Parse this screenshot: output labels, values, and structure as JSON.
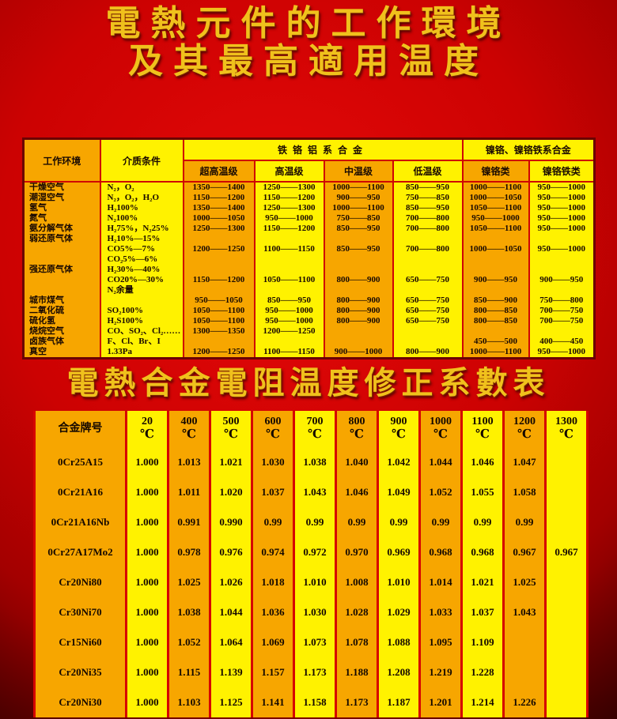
{
  "titles": {
    "line1": "電熱元件的工作環境",
    "line2": "及其最高適用温度",
    "coef_title": "電熱合金電阻温度修正系數表"
  },
  "colors": {
    "background_red": "#cc0202",
    "cell_orange": "#f7a600",
    "cell_yellow": "#fff200",
    "grid_red": "#d60202",
    "title_gold": "#f0c11c",
    "text_black": "#1a0a02"
  },
  "env_table": {
    "col_env": "工作环境",
    "col_medium": "介质条件",
    "group1": "铁铬铝系合金",
    "group2": "镍铬、镍铬铁系合金",
    "sub_headers": [
      "超高温级",
      "高温级",
      "中温级",
      "低温级",
      "镍铬类",
      "镍铬铁类"
    ],
    "lines": [
      [
        "干燥空气",
        "N₂，O₂",
        "1350——1400",
        "1250——1300",
        "1000——1100",
        "850——950",
        "1000——1100",
        "950——1000"
      ],
      [
        "潮湿空气",
        "N₂，O₂，H₂O",
        "1150——1200",
        "1150——1200",
        "900——950",
        "750——850",
        "1000——1050",
        "950——1000"
      ],
      [
        "氢气",
        "H₂100%",
        "1350——1400",
        "1250——1300",
        "1000——1100",
        "850——950",
        "1050——1100",
        "950——1000"
      ],
      [
        "氮气",
        "N₂100%",
        "1000——1050",
        "950——1000",
        "750——850",
        "700——800",
        "950——1000",
        "950——1000"
      ],
      [
        "氨分解气体",
        "H₂75%，N₂25%",
        "1250——1300",
        "1150——1200",
        "850——950",
        "700——800",
        "1050——1100",
        "950——1000"
      ],
      [
        "弱还原气体",
        "H₂10%—15%",
        "",
        "",
        "",
        "",
        "",
        ""
      ],
      [
        "",
        "CO5%—7%",
        "1200——1250",
        "1100——1150",
        "850——950",
        "700——800",
        "1000——1050",
        "950——1000"
      ],
      [
        "",
        "CO₂5%—6%",
        "",
        "",
        "",
        "",
        "",
        ""
      ],
      [
        "强还原气体",
        "H₂30%—40%",
        "",
        "",
        "",
        "",
        "",
        ""
      ],
      [
        "",
        "CO20%—30%",
        "1150——1200",
        "1050——1100",
        "800——900",
        "650——750",
        "900——950",
        "900——950"
      ],
      [
        "",
        "N₂余量",
        "",
        "",
        "",
        "",
        "",
        ""
      ],
      [
        "城市煤气",
        "",
        "950——1050",
        "850——950",
        "800——900",
        "650——750",
        "850——900",
        "750——800"
      ],
      [
        "二氧化硫",
        "SO₂100%",
        "1050——1100",
        "950——1000",
        "800——900",
        "650——750",
        "800——850",
        "700——750"
      ],
      [
        "硫化氢",
        "H₂S100%",
        "1050——1100",
        "950——1000",
        "800——900",
        "650——750",
        "800——850",
        "700——750"
      ],
      [
        "烧烷空气",
        "CO、SO₂、Cl₂……",
        "1300——1350",
        "1200——1250",
        "",
        "",
        "",
        ""
      ],
      [
        "卤族气体",
        "F、Cl、Br、I",
        "",
        "",
        "",
        "",
        "450——500",
        "400——450"
      ],
      [
        "真空",
        "1.33Pa",
        "1200——1250",
        "1100——1150",
        "900——1000",
        "800——900",
        "1000——1100",
        "950——1000"
      ]
    ]
  },
  "coef_table": {
    "grade_header": "合金牌号",
    "celsius": "℃",
    "temp_headers": [
      "20",
      "400",
      "500",
      "600",
      "700",
      "800",
      "900",
      "1000",
      "1100",
      "1200",
      "1300"
    ],
    "rows": [
      {
        "grade": "0Cr25A15",
        "values": [
          "1.000",
          "1.013",
          "1.021",
          "1.030",
          "1.038",
          "1.040",
          "1.042",
          "1.044",
          "1.046",
          "1.047",
          ""
        ]
      },
      {
        "grade": "0Cr21A16",
        "values": [
          "1.000",
          "1.011",
          "1.020",
          "1.037",
          "1.043",
          "1.046",
          "1.049",
          "1.052",
          "1.055",
          "1.058",
          ""
        ]
      },
      {
        "grade": "0Cr21A16Nb",
        "values": [
          "1.000",
          "0.991",
          "0.990",
          "0.99",
          "0.99",
          "0.99",
          "0.99",
          "0.99",
          "0.99",
          "0.99",
          ""
        ]
      },
      {
        "grade": "0Cr27A17Mo2",
        "values": [
          "1.000",
          "0.978",
          "0.976",
          "0.974",
          "0.972",
          "0.970",
          "0.969",
          "0.968",
          "0.968",
          "0.967",
          "0.967"
        ]
      },
      {
        "grade": "Cr20Ni80",
        "values": [
          "1.000",
          "1.025",
          "1.026",
          "1.018",
          "1.010",
          "1.008",
          "1.010",
          "1.014",
          "1.021",
          "1.025",
          ""
        ]
      },
      {
        "grade": "Cr30Ni70",
        "values": [
          "1.000",
          "1.038",
          "1.044",
          "1.036",
          "1.030",
          "1.028",
          "1.029",
          "1.033",
          "1.037",
          "1.043",
          ""
        ]
      },
      {
        "grade": "Cr15Ni60",
        "values": [
          "1.000",
          "1.052",
          "1.064",
          "1.069",
          "1.073",
          "1.078",
          "1.088",
          "1.095",
          "1.109",
          "",
          ""
        ]
      },
      {
        "grade": "Cr20Ni35",
        "values": [
          "1.000",
          "1.115",
          "1.139",
          "1.157",
          "1.173",
          "1.188",
          "1.208",
          "1.219",
          "1.228",
          "",
          ""
        ]
      },
      {
        "grade": "Cr20Ni30",
        "values": [
          "1.000",
          "1.103",
          "1.125",
          "1.141",
          "1.158",
          "1.173",
          "1.187",
          "1.201",
          "1.214",
          "1.226",
          ""
        ]
      }
    ]
  }
}
